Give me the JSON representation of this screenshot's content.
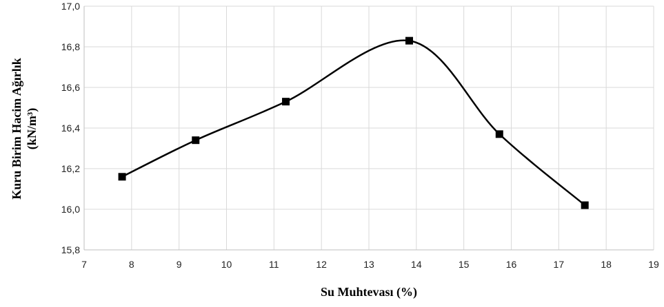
{
  "chart_data": {
    "type": "line",
    "smoothed": true,
    "marker": "square",
    "xlabel": "Su Muhtevası (%)",
    "ylabel_line1": "Kuru Birim Hacim Ağırlık",
    "ylabel_line2": "(kN/m³)",
    "xlim": [
      7,
      19
    ],
    "ylim": [
      15.8,
      17.0
    ],
    "xticks": [
      "7",
      "8",
      "9",
      "10",
      "11",
      "12",
      "13",
      "14",
      "15",
      "16",
      "17",
      "18",
      "19"
    ],
    "yticks": [
      "15,8",
      "16,0",
      "16,2",
      "16,4",
      "16,6",
      "16,8",
      "17,0"
    ],
    "grid": true,
    "legend": "none",
    "series": [
      {
        "color": "#000000",
        "x": [
          7.8,
          9.35,
          11.25,
          13.85,
          15.75,
          17.55
        ],
        "y": [
          16.16,
          16.34,
          16.53,
          16.83,
          16.37,
          16.02
        ]
      }
    ]
  }
}
